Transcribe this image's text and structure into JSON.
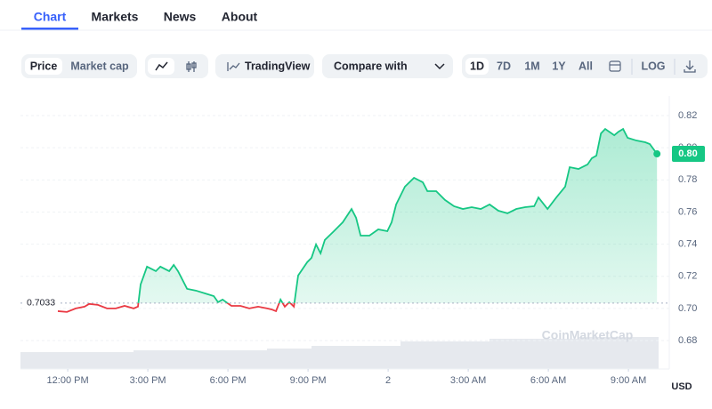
{
  "tabs": [
    "Chart",
    "Markets",
    "News",
    "About"
  ],
  "toolbar": {
    "price": "Price",
    "market_cap": "Market cap",
    "tradingview": "TradingView",
    "compare": "Compare with",
    "ranges": [
      "1D",
      "7D",
      "1M",
      "1Y",
      "All"
    ],
    "log": "LOG"
  },
  "chart_data": {
    "type": "line",
    "watermark": "CoinMarketCap",
    "currency": "USD",
    "x": [
      11.63,
      11.97,
      12.3,
      12.63,
      12.8,
      13.13,
      13.47,
      13.8,
      14.13,
      14.47,
      14.63,
      14.73,
      14.97,
      15.3,
      15.47,
      15.8,
      15.97,
      16.13,
      16.47,
      16.8,
      17.13,
      17.47,
      17.63,
      17.8,
      18.13,
      18.47,
      18.8,
      19.13,
      19.47,
      19.63,
      19.8,
      19.97,
      20.13,
      20.3,
      20.47,
      20.63,
      20.97,
      21.13,
      21.3,
      21.47,
      21.63,
      21.97,
      22.3,
      22.63,
      22.8,
      22.97,
      23.3,
      23.63,
      23.97,
      24.13,
      24.3,
      24.63,
      24.97,
      25.3,
      25.47,
      25.8,
      26.13,
      26.47,
      26.8,
      27.13,
      27.47,
      27.8,
      28.13,
      28.47,
      28.8,
      29.13,
      29.47,
      29.63,
      29.97,
      30.3,
      30.63,
      30.8,
      31.13,
      31.47,
      31.63,
      31.8,
      31.97,
      32.13,
      32.47,
      32.63,
      32.8,
      32.97,
      33.3,
      33.63,
      33.8,
      34.07
    ],
    "values": [
      0.6983,
      0.6978,
      0.7,
      0.7011,
      0.7028,
      0.7022,
      0.7,
      0.7,
      0.7016,
      0.7,
      0.7011,
      0.7149,
      0.726,
      0.7232,
      0.726,
      0.7232,
      0.7271,
      0.7232,
      0.7122,
      0.7111,
      0.7094,
      0.7077,
      0.7039,
      0.7055,
      0.7016,
      0.7016,
      0.7,
      0.7011,
      0.7,
      0.6994,
      0.6983,
      0.7055,
      0.7011,
      0.7039,
      0.7011,
      0.7205,
      0.7288,
      0.7315,
      0.7398,
      0.7343,
      0.7426,
      0.7481,
      0.7536,
      0.7619,
      0.7564,
      0.7453,
      0.7453,
      0.7492,
      0.7481,
      0.7536,
      0.7647,
      0.7758,
      0.7813,
      0.7785,
      0.773,
      0.773,
      0.7675,
      0.7636,
      0.7619,
      0.763,
      0.7619,
      0.7647,
      0.7608,
      0.7592,
      0.7619,
      0.763,
      0.7636,
      0.7691,
      0.7619,
      0.7691,
      0.7758,
      0.7879,
      0.7868,
      0.7896,
      0.7935,
      0.7951,
      0.8089,
      0.8117,
      0.8078,
      0.81,
      0.8117,
      0.8062,
      0.8045,
      0.8034,
      0.8023,
      0.7962
    ],
    "up_color": "#16c784",
    "down_color": "#ea3943",
    "baseline": 0.7033,
    "current_price_label": "0.80",
    "xlim": [
      10.23,
      34.53
    ],
    "xticks": [
      {
        "value": 12,
        "label": "12:00 PM"
      },
      {
        "value": 15,
        "label": "3:00 PM"
      },
      {
        "value": 18,
        "label": "6:00 PM"
      },
      {
        "value": 21,
        "label": "9:00 PM"
      },
      {
        "value": 24,
        "label": "2"
      },
      {
        "value": 27,
        "label": "3:00 AM"
      },
      {
        "value": 30,
        "label": "6:00 AM"
      },
      {
        "value": 33,
        "label": "9:00 AM"
      }
    ],
    "ylim": [
      0.6623,
      0.8322
    ],
    "yticks": [
      0.68,
      {
        "value": 0.7,
        "label": "0.70"
      },
      0.72,
      0.74,
      0.76,
      0.78,
      {
        "value": 0.8,
        "label": "0.80"
      },
      0.82
    ],
    "grid": true
  }
}
